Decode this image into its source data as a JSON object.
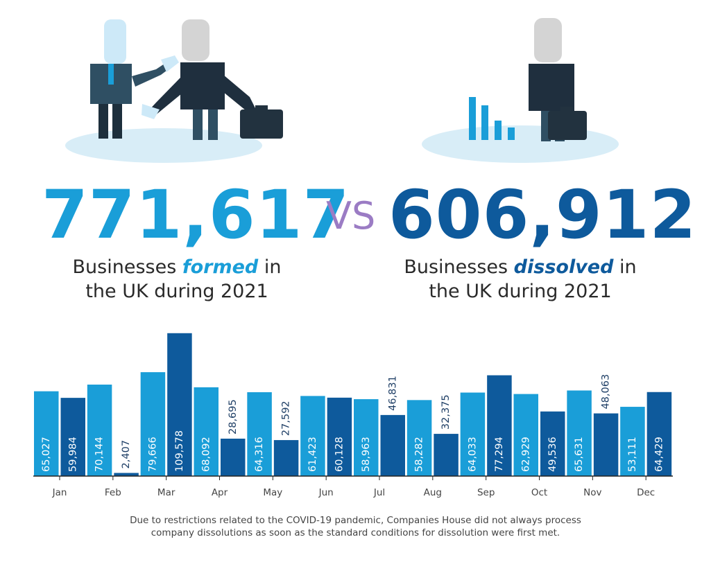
{
  "colors": {
    "formed": "#1a9ed8",
    "dissolved": "#0e5a9c",
    "vs": "#9b7cc4",
    "shadow": "#d8edf7"
  },
  "illustrations": {
    "left": "handshake-businessmen-icon",
    "right": "businessman-declining-bar-chart-icon"
  },
  "summary": {
    "formed": {
      "number": "771,617",
      "text_before": "Businesses ",
      "keyword": "formed",
      "text_after": " in",
      "line2": "the UK during 2021"
    },
    "vs": "VS",
    "dissolved": {
      "number": "606,912",
      "text_before": "Businesses ",
      "keyword": "dissolved",
      "text_after": " in",
      "line2": "the UK during 2021"
    }
  },
  "chart_data": {
    "type": "bar",
    "categories": [
      "Jan",
      "Feb",
      "Mar",
      "Apr",
      "May",
      "Jun",
      "Jul",
      "Aug",
      "Sep",
      "Oct",
      "Nov",
      "Dec"
    ],
    "series": [
      {
        "values": [
          65027,
          70144,
          79666,
          68092,
          64316,
          61423,
          58963,
          58282,
          64033,
          62929,
          65631,
          53111
        ]
      },
      {
        "values": [
          59984,
          2407,
          109578,
          28695,
          27592,
          60128,
          46831,
          32375,
          77294,
          49536,
          48063,
          64429
        ]
      }
    ],
    "value_labels": {
      "series0": [
        "65,027",
        "70,144",
        "79,666",
        "68,092",
        "64,316",
        "61,423",
        "58,963",
        "58,282",
        "64,033",
        "62,929",
        "65,631",
        "53,111"
      ],
      "series1": [
        "59,984",
        "2,407",
        "109,578",
        "28,695",
        "27,592",
        "60,128",
        "46,831",
        "32,375",
        "77,294",
        "49,536",
        "48,063",
        "64,429"
      ]
    },
    "ylim": [
      0,
      110000
    ],
    "grid": false,
    "legend": "none"
  },
  "footnote": {
    "line1": "Due to restrictions related to the COVID-19 pandemic, Companies House did not always process",
    "line2": "company dissolutions as soon as the standard conditions for dissolution were first met."
  }
}
